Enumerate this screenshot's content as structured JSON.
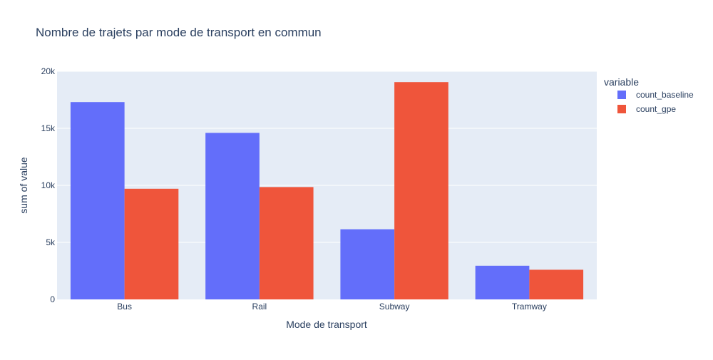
{
  "chart_data": {
    "type": "bar",
    "title": "Nombre de trajets par mode de transport en commun",
    "xlabel": "Mode de transport",
    "ylabel": "sum of value",
    "categories": [
      "Bus",
      "Rail",
      "Subway",
      "Tramway"
    ],
    "series": [
      {
        "name": "count_baseline",
        "color": "#636efa",
        "values": [
          17300,
          14600,
          6150,
          2950
        ]
      },
      {
        "name": "count_gpe",
        "color": "#ef553b",
        "values": [
          9700,
          9850,
          19050,
          2600
        ]
      }
    ],
    "ylim": [
      0,
      20000
    ],
    "yticks": [
      0,
      5000,
      10000,
      15000,
      20000
    ],
    "ytick_labels": [
      "0",
      "5k",
      "10k",
      "15k",
      "20k"
    ],
    "legend": {
      "title": "variable",
      "placement": "right"
    },
    "grid": true,
    "plot_background": "#e5ecf6"
  }
}
